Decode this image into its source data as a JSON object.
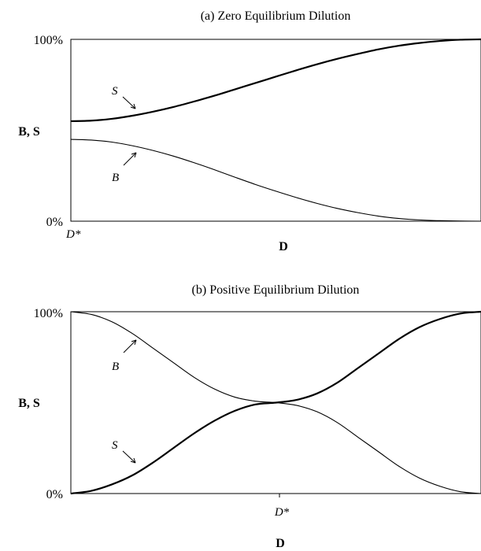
{
  "chart_data": [
    {
      "type": "line",
      "title": "(a) Zero Equilibrium Dilution",
      "xlabel": "D",
      "ylabel": "B, S",
      "yticks": [
        "100%",
        "0%"
      ],
      "xtick_label": "D*",
      "xtick_position": "left",
      "ylim": [
        0,
        100
      ],
      "xlim": [
        0,
        1
      ],
      "grid": false,
      "series": [
        {
          "name": "S",
          "x": [
            0,
            0.05,
            0.1,
            0.15,
            0.2,
            0.25,
            0.3,
            0.35,
            0.4,
            0.45,
            0.5,
            0.55,
            0.6,
            0.65,
            0.7,
            0.75,
            0.8,
            0.85,
            0.9,
            0.95,
            1.0
          ],
          "values": [
            55,
            55.3,
            56.3,
            58,
            60.2,
            62.8,
            65.8,
            69,
            72.5,
            76,
            79.5,
            83,
            86.3,
            89.3,
            92,
            94.5,
            96.5,
            98,
            99.1,
            99.8,
            100
          ]
        },
        {
          "name": "B",
          "x": [
            0,
            0.05,
            0.1,
            0.15,
            0.2,
            0.25,
            0.3,
            0.35,
            0.4,
            0.45,
            0.5,
            0.55,
            0.6,
            0.65,
            0.7,
            0.75,
            0.8,
            0.85,
            0.9,
            0.95,
            1.0
          ],
          "values": [
            45,
            44.6,
            43.5,
            41.5,
            38.9,
            35.8,
            32.2,
            28.3,
            24.2,
            20.2,
            16.5,
            13,
            9.8,
            7,
            4.7,
            2.8,
            1.5,
            0.7,
            0.3,
            0.1,
            0
          ]
        }
      ],
      "annotations": [
        {
          "text": "S",
          "series": "S"
        },
        {
          "text": "B",
          "series": "B"
        }
      ]
    },
    {
      "type": "line",
      "title": "(b) Positive Equilibrium Dilution",
      "xlabel": "D",
      "ylabel": "B, S",
      "yticks": [
        "100%",
        "0%"
      ],
      "xtick_label": "D*",
      "xtick_position": "center",
      "ylim": [
        0,
        100
      ],
      "xlim": [
        0,
        1
      ],
      "grid": false,
      "series": [
        {
          "name": "S",
          "x": [
            0,
            0.05,
            0.1,
            0.15,
            0.2,
            0.25,
            0.3,
            0.35,
            0.4,
            0.45,
            0.5,
            0.55,
            0.6,
            0.65,
            0.7,
            0.75,
            0.8,
            0.85,
            0.9,
            0.95,
            1.0
          ],
          "values": [
            0,
            1.5,
            5,
            10,
            17,
            25,
            33,
            40,
            45.5,
            49,
            50,
            51.5,
            55,
            61,
            69,
            77,
            85,
            91.5,
            96,
            99,
            100
          ]
        },
        {
          "name": "B",
          "x": [
            0,
            0.05,
            0.1,
            0.15,
            0.2,
            0.25,
            0.3,
            0.35,
            0.4,
            0.45,
            0.5,
            0.55,
            0.6,
            0.65,
            0.7,
            0.75,
            0.8,
            0.85,
            0.9,
            0.95,
            1.0
          ],
          "values": [
            100,
            98.5,
            94.5,
            88,
            80,
            72,
            64,
            57.5,
            53,
            50.8,
            50,
            48.5,
            45,
            39,
            31,
            23,
            15,
            8.5,
            4,
            1,
            0
          ]
        }
      ],
      "annotations": [
        {
          "text": "B",
          "series": "B"
        },
        {
          "text": "S",
          "series": "S"
        }
      ]
    }
  ]
}
